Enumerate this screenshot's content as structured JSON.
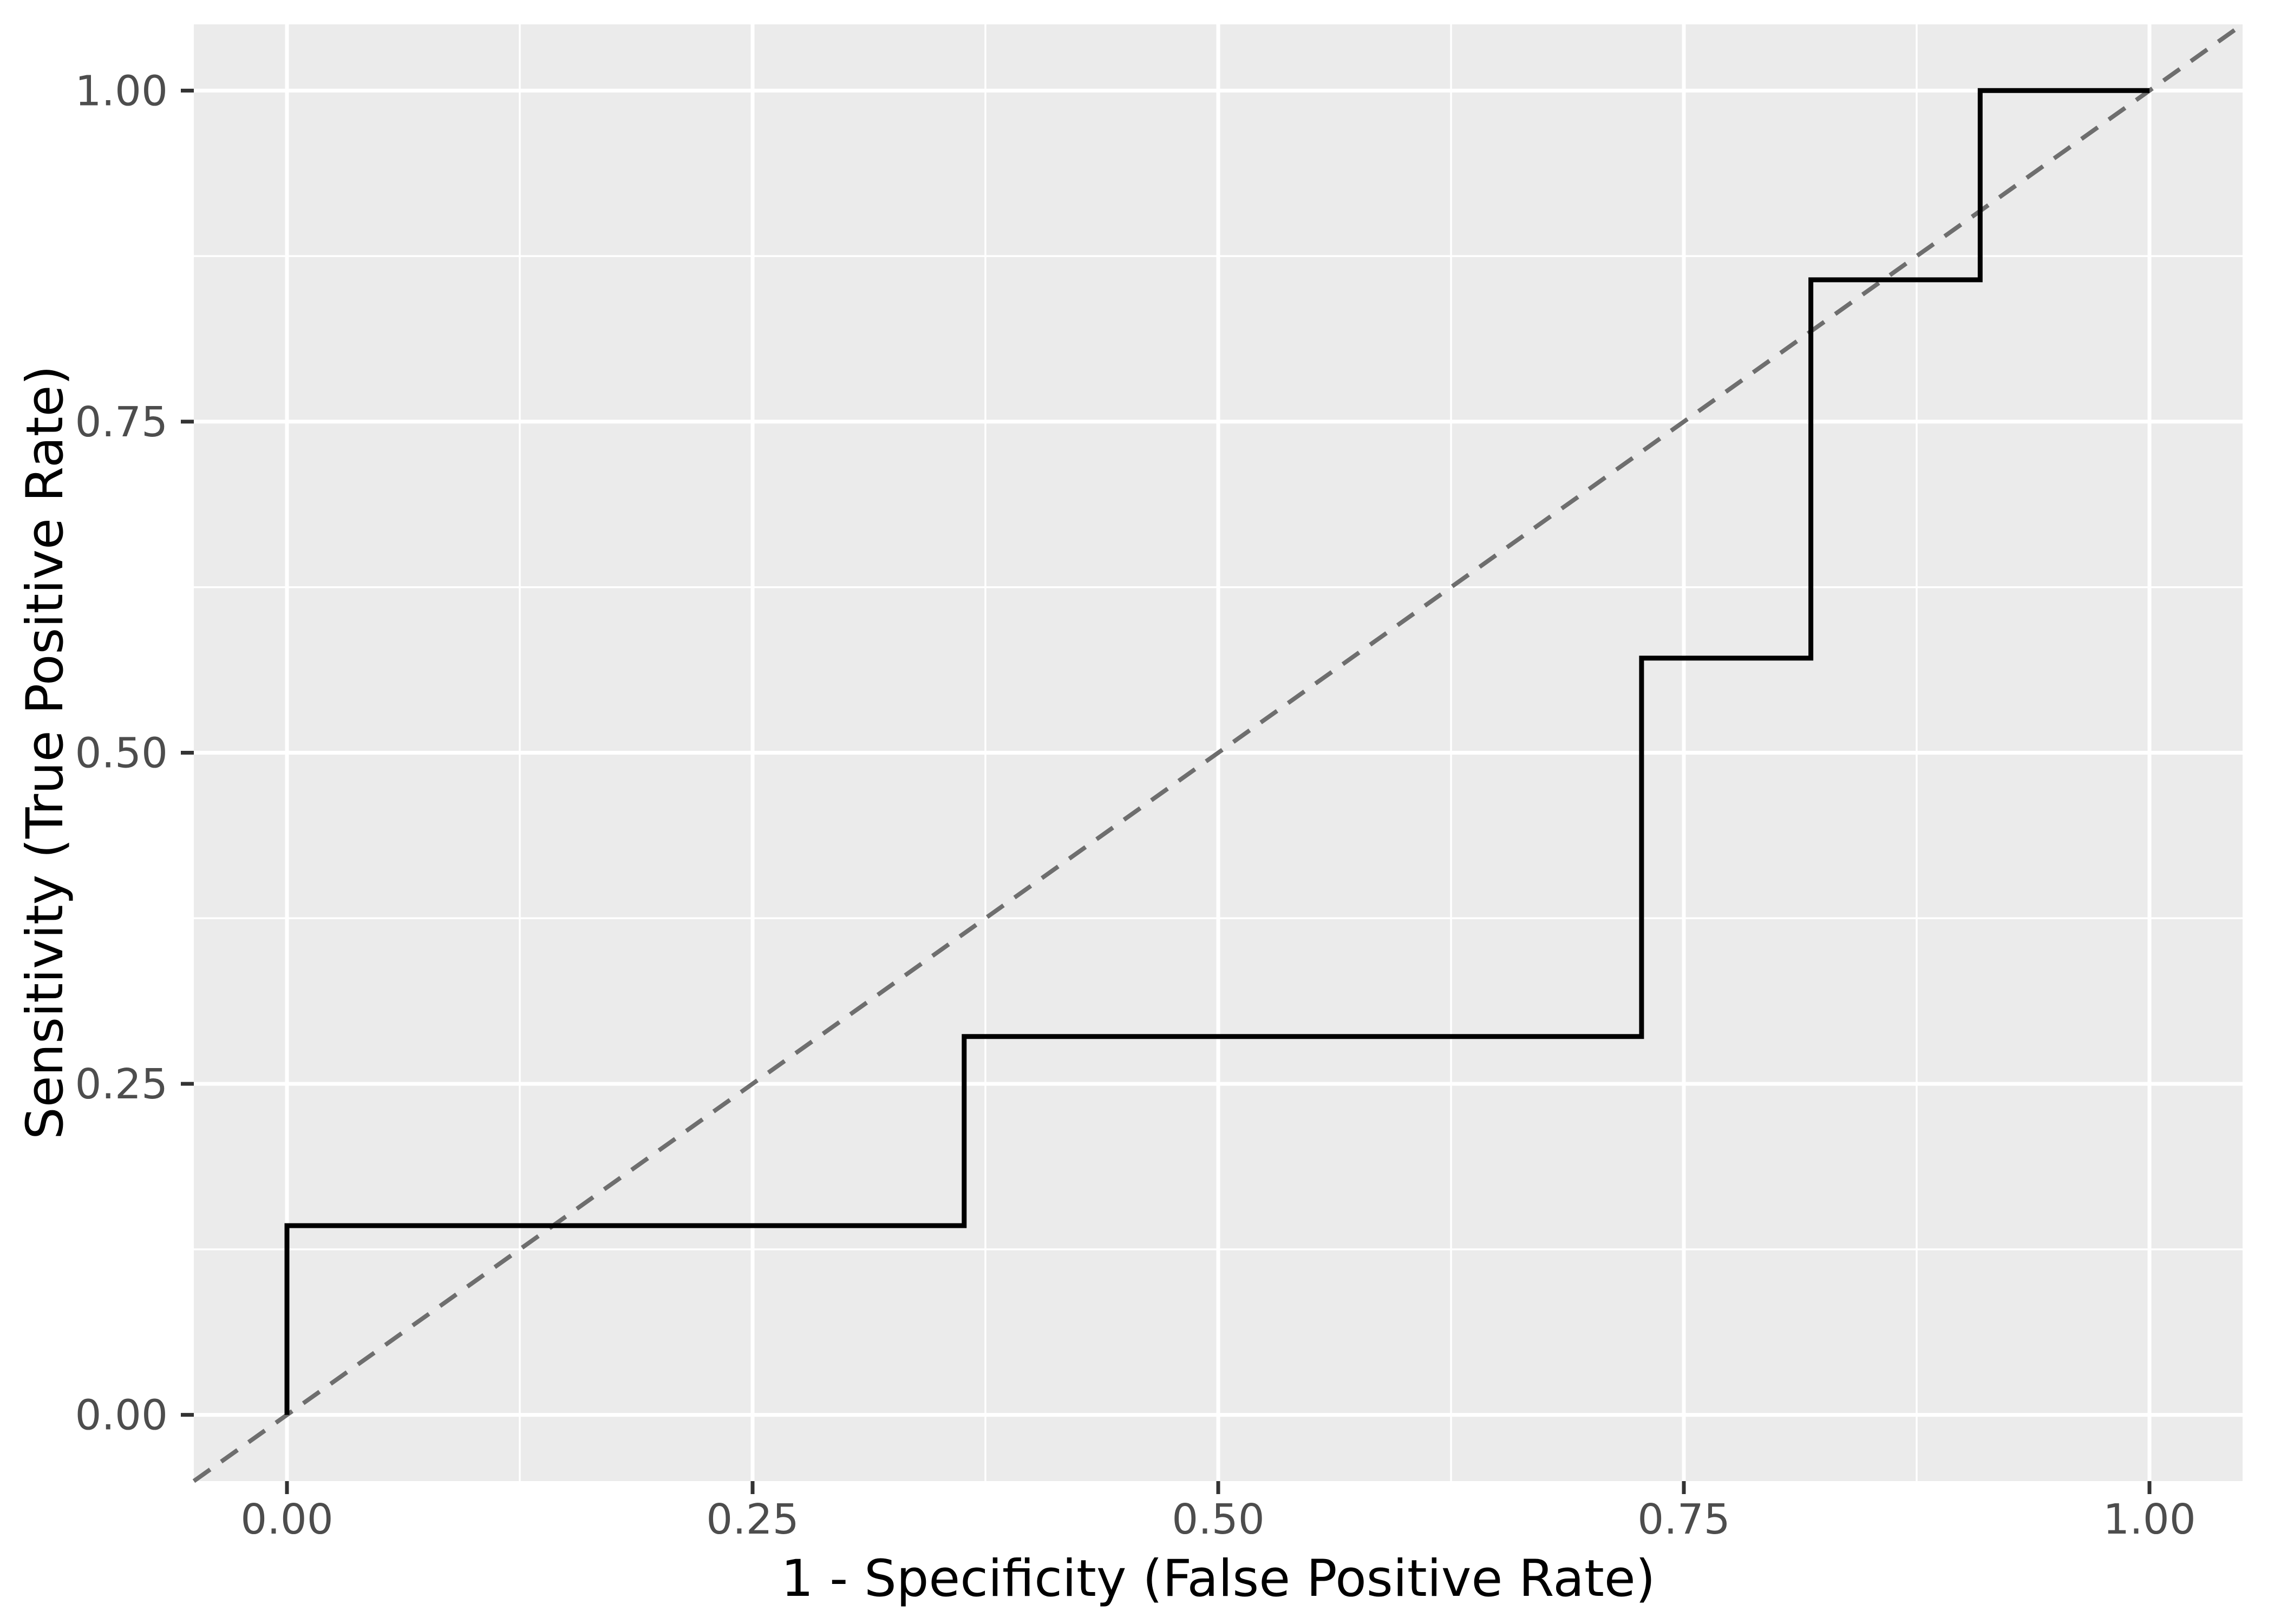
{
  "figure": {
    "background_color": "#FFFFFF",
    "panel_background_color": "#EBEBEB",
    "grid_color": "#FFFFFF",
    "tick_mark_color": "#333333",
    "tick_label_color": "#4D4D4D",
    "axis_title_color": "#000000"
  },
  "chart_data": {
    "type": "line",
    "subtype": "roc-step-curve-with-chance-diagonal",
    "title": "",
    "xlabel": "1 - Specificity (False Positive Rate)",
    "ylabel": "Sensitivity (True Positive Rate)",
    "xlim": [
      -0.05,
      1.05
    ],
    "ylim": [
      -0.05,
      1.05
    ],
    "grid": "white major and minor gridlines on grey panel",
    "legend_position": "none",
    "x_ticks": {
      "values": [
        0,
        0.25,
        0.5,
        0.75,
        1
      ],
      "labels": [
        "0.00",
        "0.25",
        "0.50",
        "0.75",
        "1.00"
      ]
    },
    "y_ticks": {
      "values": [
        0,
        0.25,
        0.5,
        0.75,
        1
      ],
      "labels": [
        "0.00",
        "0.25",
        "0.50",
        "0.75",
        "1.00"
      ]
    },
    "x_minor_ticks": [
      0.125,
      0.375,
      0.625,
      0.875
    ],
    "y_minor_ticks": [
      0.125,
      0.375,
      0.625,
      0.875
    ],
    "series": [
      {
        "name": "ROC step curve",
        "style": "solid",
        "color": "#000000",
        "width": 9,
        "points": [
          [
            0,
            0
          ],
          [
            0,
            0.1429
          ],
          [
            0.3636,
            0.1429
          ],
          [
            0.3636,
            0.2857
          ],
          [
            0.7273,
            0.2857
          ],
          [
            0.7273,
            0.5714
          ],
          [
            0.8182,
            0.5714
          ],
          [
            0.8182,
            0.8571
          ],
          [
            0.9091,
            0.8571
          ],
          [
            0.9091,
            1
          ],
          [
            1,
            1
          ]
        ]
      },
      {
        "name": "Chance diagonal (y = x)",
        "style": "dashed",
        "color": "#6E6E6E",
        "width": 8,
        "dash": [
          37,
          25
        ],
        "points": [
          [
            -0.05,
            -0.05
          ],
          [
            1.05,
            1.05
          ]
        ]
      }
    ]
  }
}
